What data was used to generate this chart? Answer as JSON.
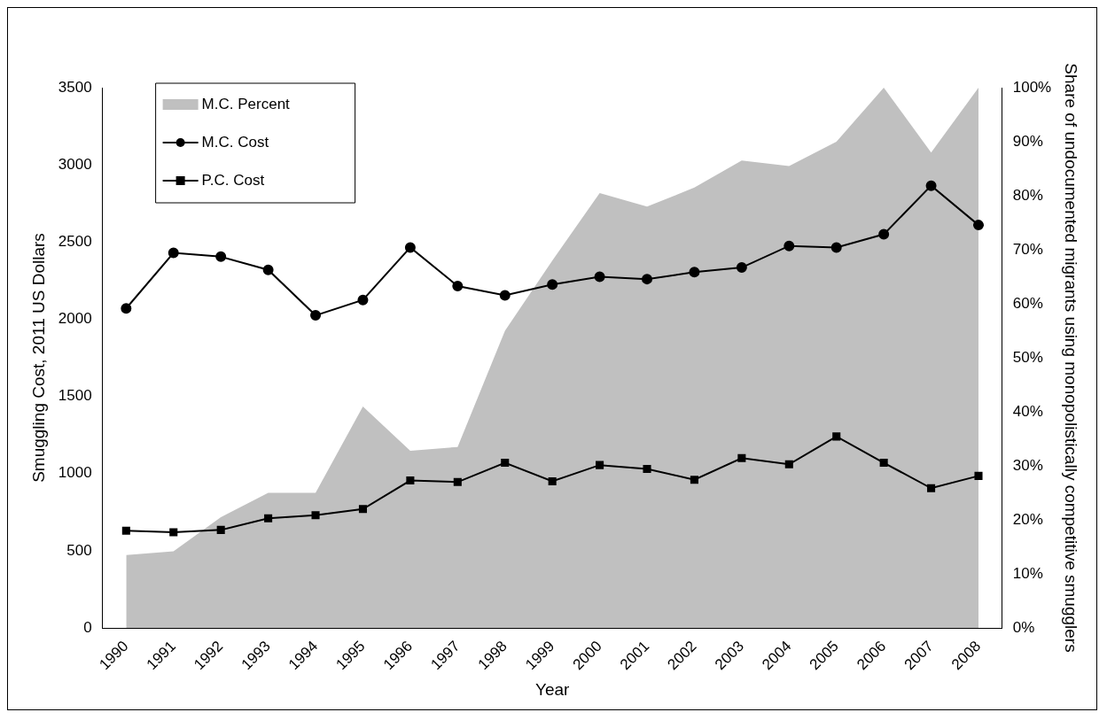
{
  "chart_data": {
    "type": "line",
    "xlabel": "Year",
    "ylabel": "Smuggling Cost, 2011 US Dollars",
    "y2label": "Share of undocumented migrants using monopolistically competitive smugglers",
    "categories": [
      "1990",
      "1991",
      "1992",
      "1993",
      "1994",
      "1995",
      "1996",
      "1997",
      "1998",
      "1999",
      "2000",
      "2001",
      "2002",
      "2003",
      "2004",
      "2005",
      "2006",
      "2007",
      "2008"
    ],
    "series": [
      {
        "name": "M.C. Percent",
        "type": "area",
        "axis": "y2",
        "color": "#c0c0c0",
        "marker": "none",
        "values": [
          13.5,
          14.2,
          20.5,
          25,
          25,
          41,
          32.8,
          33.5,
          55,
          68,
          80.5,
          78,
          81.5,
          86.5,
          85.5,
          90,
          100,
          88,
          100
        ]
      },
      {
        "name": "M.C. Cost",
        "color": "#000000",
        "marker": "circle",
        "values": [
          2070,
          2430,
          2405,
          2320,
          2025,
          2125,
          2465,
          2215,
          2155,
          2225,
          2275,
          2260,
          2305,
          2335,
          2475,
          2465,
          2550,
          2865,
          2610
        ]
      },
      {
        "name": "P.C. Cost",
        "color": "#000000",
        "marker": "square",
        "values": [
          630,
          620,
          635,
          710,
          730,
          770,
          955,
          945,
          1070,
          950,
          1055,
          1030,
          960,
          1100,
          1060,
          1240,
          1070,
          905,
          985
        ]
      }
    ],
    "ylim": [
      0,
      3500
    ],
    "yticks": [
      0,
      500,
      1000,
      1500,
      2000,
      2500,
      3000,
      3500
    ],
    "y2lim": [
      0,
      100
    ],
    "y2ticks": [
      {
        "value": 0,
        "label": "0%"
      },
      {
        "value": 10,
        "label": "10%"
      },
      {
        "value": 20,
        "label": "20%"
      },
      {
        "value": 30,
        "label": "30%"
      },
      {
        "value": 40,
        "label": "40%"
      },
      {
        "value": 50,
        "label": "50%"
      },
      {
        "value": 60,
        "label": "60%"
      },
      {
        "value": 70,
        "label": "70%"
      },
      {
        "value": 80,
        "label": "80%"
      },
      {
        "value": 90,
        "label": "90%"
      },
      {
        "value": 100,
        "label": "100%"
      }
    ],
    "grid": false,
    "legend": "top left"
  }
}
